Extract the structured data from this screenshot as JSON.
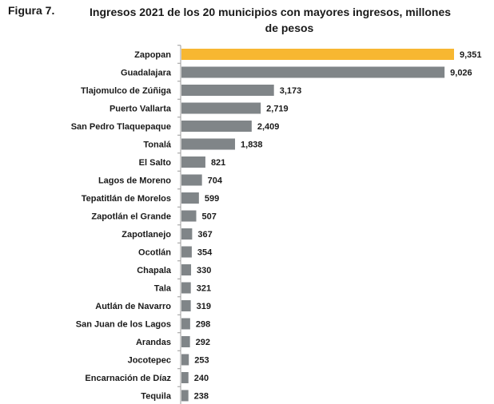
{
  "figure_label": "Figura 7.",
  "title_line1": "Ingresos 2021 de los 20 municipios con mayores ingresos, millones",
  "title_line2": "de pesos",
  "colors": {
    "highlight": "#F7B731",
    "bar": "#808588",
    "axis": "#9a9a9a"
  },
  "chart_data": {
    "type": "bar",
    "orientation": "horizontal",
    "title": "Ingresos 2021 de los 20 municipios con mayores ingresos, millones de pesos",
    "xlabel": "",
    "ylabel": "",
    "categories": [
      "Zapopan",
      "Guadalajara",
      "Tlajomulco de Zúñiga",
      "Puerto Vallarta",
      "San Pedro Tlaquepaque",
      "Tonalá",
      "El Salto",
      "Lagos de Moreno",
      "Tepatitlán de Morelos",
      "Zapotlán el Grande",
      "Zapotlanejo",
      "Ocotlán",
      "Chapala",
      "Tala",
      "Autlán de Navarro",
      "San Juan de los Lagos",
      "Arandas",
      "Jocotepec",
      "Encarnación de Díaz",
      "Tequila"
    ],
    "values": [
      9351,
      9026,
      3173,
      2719,
      2409,
      1838,
      821,
      704,
      599,
      507,
      367,
      354,
      330,
      321,
      319,
      298,
      292,
      253,
      240,
      238
    ],
    "value_labels": [
      "9,351",
      "9,026",
      "3,173",
      "2,719",
      "2,409",
      "1,838",
      "821",
      "704",
      "599",
      "507",
      "367",
      "354",
      "330",
      "321",
      "319",
      "298",
      "292",
      "253",
      "240",
      "238"
    ],
    "highlighted_category": "Zapopan",
    "xlim": [
      0,
      9351
    ],
    "grid": false,
    "legend": "none"
  }
}
